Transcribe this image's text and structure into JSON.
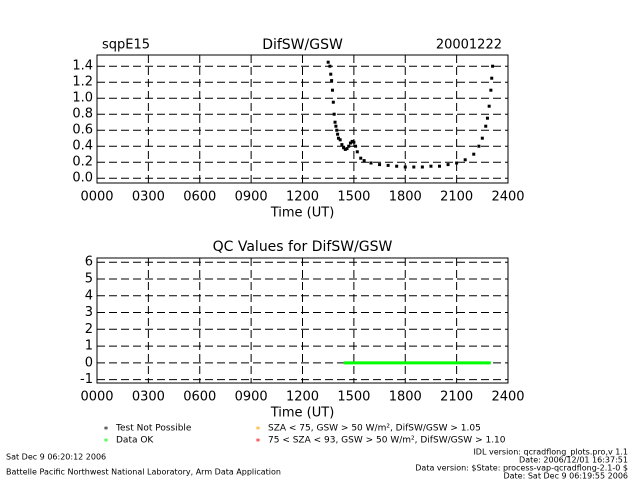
{
  "chart_data": [
    {
      "type": "scatter",
      "left_label": "sqpE15",
      "title": "DifSW/GSW",
      "right_label": "20001222",
      "xlabel": "Time (UT)",
      "x": [
        1350,
        1360,
        1365,
        1370,
        1375,
        1380,
        1385,
        1390,
        1395,
        1400,
        1405,
        1410,
        1420,
        1430,
        1440,
        1450,
        1460,
        1470,
        1480,
        1490,
        1500,
        1510,
        1520,
        1540,
        1560,
        1600,
        1650,
        1700,
        1750,
        1800,
        1850,
        1900,
        1950,
        2000,
        2050,
        2100,
        2150,
        2200,
        2230,
        2250,
        2270,
        2280,
        2290,
        2300,
        2305,
        2310
      ],
      "values": [
        1.45,
        1.4,
        1.3,
        1.22,
        1.1,
        0.95,
        0.8,
        0.7,
        0.65,
        0.6,
        0.55,
        0.5,
        0.48,
        0.42,
        0.38,
        0.36,
        0.37,
        0.4,
        0.44,
        0.46,
        0.45,
        0.4,
        0.33,
        0.25,
        0.22,
        0.19,
        0.17,
        0.16,
        0.15,
        0.14,
        0.14,
        0.14,
        0.15,
        0.15,
        0.17,
        0.19,
        0.23,
        0.3,
        0.4,
        0.5,
        0.65,
        0.75,
        0.9,
        1.1,
        1.25,
        1.4
      ],
      "color": "#000000",
      "xlim": [
        0,
        2400
      ],
      "xticks": [
        {
          "value": 0,
          "label": "0000"
        },
        {
          "value": 300,
          "label": "0300"
        },
        {
          "value": 600,
          "label": "0600"
        },
        {
          "value": 900,
          "label": "0900"
        },
        1200,
        1500,
        1800,
        2100,
        2400
      ],
      "ylim": [
        -0.06,
        1.54
      ],
      "yticks": [
        {
          "value": 0,
          "label": "0.0"
        },
        0.2,
        0.4,
        0.6,
        0.8,
        {
          "value": 1,
          "label": "1.0"
        },
        1.2,
        1.4
      ],
      "grid": true
    },
    {
      "type": "line",
      "title": "QC Values for DifSW/GSW",
      "xlabel": "Time (UT)",
      "series": [
        {
          "name": "Data OK",
          "color": "#00ff00",
          "x": [
            1440,
            2300
          ],
          "values": [
            0,
            0
          ]
        }
      ],
      "xlim": [
        0,
        2400
      ],
      "xticks": [
        {
          "value": 0,
          "label": "0000"
        },
        {
          "value": 300,
          "label": "0300"
        },
        {
          "value": 600,
          "label": "0600"
        },
        {
          "value": 900,
          "label": "0900"
        },
        1200,
        1500,
        1800,
        2100,
        2400
      ],
      "ylim": [
        -1.2,
        6.25
      ],
      "yticks": [
        -1,
        0,
        1,
        2,
        3,
        4,
        5,
        6
      ],
      "grid": true
    }
  ],
  "legend": [
    {
      "marker": "*",
      "label": "Test Not Possible",
      "color": "#000000"
    },
    {
      "marker": "*",
      "label": "SZA < 75, GSW > 50 W/m², DifSW/GSW > 1.05",
      "color": "#ffa500"
    },
    {
      "marker": "*",
      "label": "Data OK",
      "color": "#00ff00"
    },
    {
      "marker": "*",
      "label": "75 < SZA < 93, GSW > 50 W/m², DifSW/GSW > 1.10",
      "color": "#ff0000"
    }
  ],
  "footer": {
    "left": [
      "Sat Dec  9 06:20:12 2006",
      "Battelle Pacific Northwest National Laboratory, Arm Data Application"
    ],
    "right": [
      "IDL version: qcradflong_plots.pro,v 1.1",
      "Date: 2006/12/01 16:37:51",
      "Data version: $State: process-vap-qcradflong-2.1-0 $",
      "Date: Sat Dec  9 06:19:55 2006"
    ]
  }
}
